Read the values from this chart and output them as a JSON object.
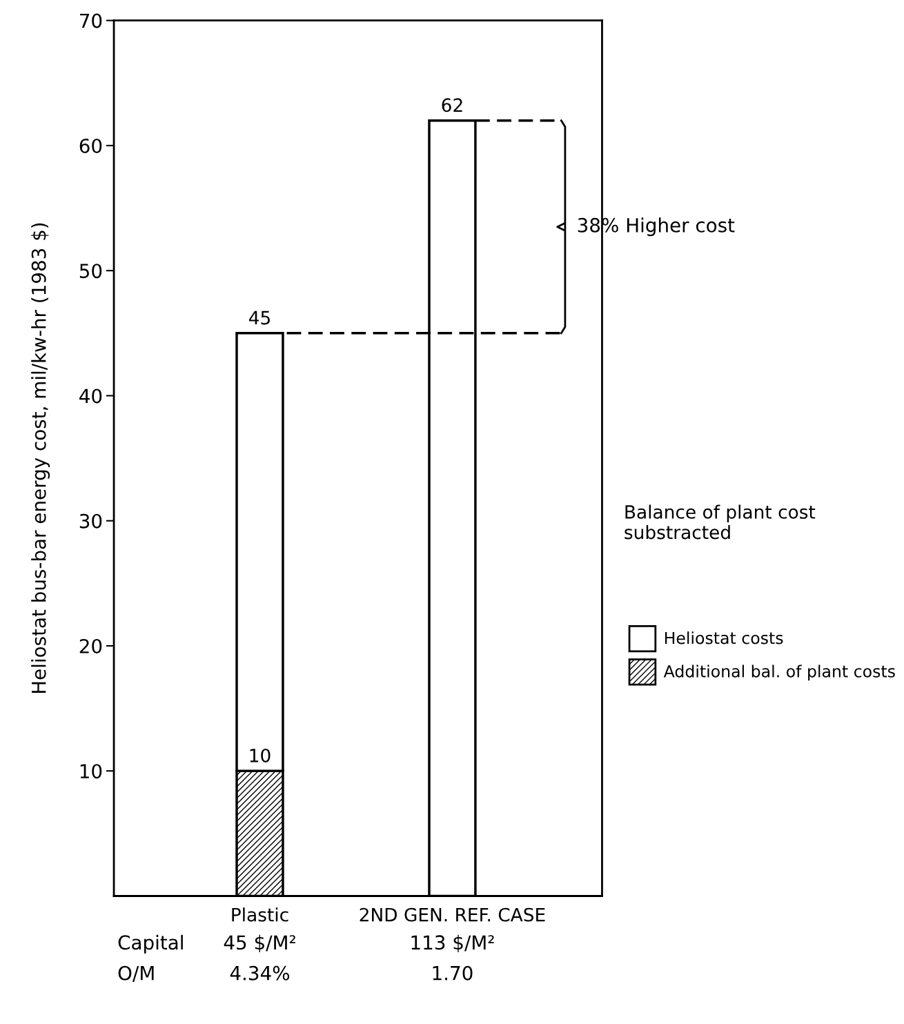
{
  "chart_data": {
    "type": "bar",
    "stacked": true,
    "categories": [
      "Plastic",
      "2ND GEN. REF. CASE"
    ],
    "series": [
      {
        "name": "Additional bal. of plant costs",
        "color": "#000000",
        "values": [
          10,
          null
        ],
        "value_labels": [
          "10",
          null
        ]
      },
      {
        "name": "Heliostat costs",
        "color": "#ffffff",
        "values": [
          35,
          62
        ]
      }
    ],
    "totals": [
      "45",
      "62"
    ],
    "ylabel": "Heliostat bus-bar energy cost, mil/kw-hr (1983 $)",
    "ylim": [
      0,
      70
    ],
    "yticks": [
      10,
      20,
      30,
      40,
      50,
      60,
      70
    ],
    "legend": "right",
    "legend_title": "Balance of plant cost substracted",
    "grid": false,
    "annotations": [
      "Capital",
      "45 $/M²",
      "113 $/M²",
      "O/M",
      "4.34%",
      "1.70",
      "38% Higher cost"
    ]
  }
}
